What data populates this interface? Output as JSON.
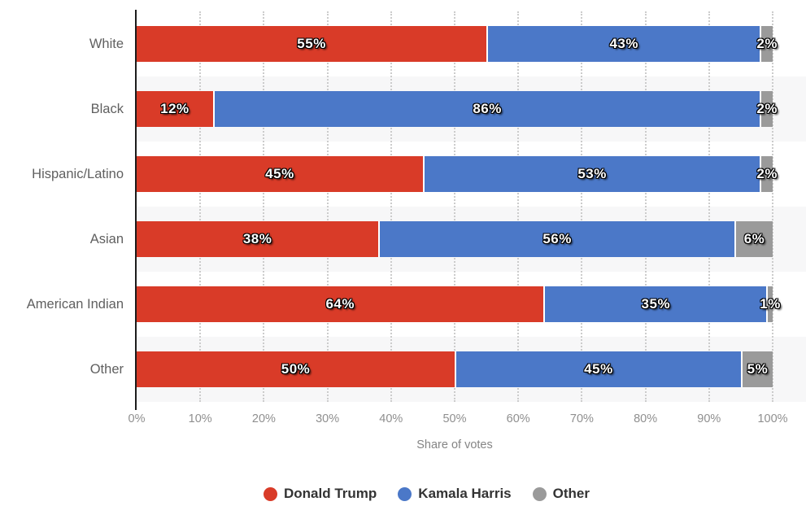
{
  "chart_data": {
    "type": "bar",
    "subtype": "horizontal-stacked",
    "title": "",
    "categories": [
      "White",
      "Black",
      "Hispanic/Latino",
      "Asian",
      "American Indian",
      "Other"
    ],
    "series": [
      {
        "name": "Donald Trump",
        "color": "#d93b28",
        "values": [
          55,
          12,
          45,
          38,
          64,
          50
        ]
      },
      {
        "name": "Kamala Harris",
        "color": "#4b78c8",
        "values": [
          43,
          86,
          53,
          56,
          35,
          45
        ]
      },
      {
        "name": "Other",
        "color": "#9a9a9a",
        "values": [
          2,
          2,
          2,
          6,
          1,
          5
        ]
      }
    ],
    "value_suffix": "%",
    "xlabel": "Share of votes",
    "x_ticks": [
      "0%",
      "10%",
      "20%",
      "30%",
      "40%",
      "50%",
      "60%",
      "70%",
      "80%",
      "90%",
      "100%"
    ],
    "xlim": [
      0,
      100
    ],
    "grid": "vertical-dotted",
    "legend_position": "bottom",
    "colors": {
      "stripe": "#f7f7f8",
      "gridline": "#cccccc",
      "axis_line": "#1c1c1c",
      "category_text": "#606060",
      "tick_text": "#8f8f8f",
      "axis_title_text": "#858585",
      "legend_text": "#333333",
      "value_text": "#ffffff"
    }
  }
}
